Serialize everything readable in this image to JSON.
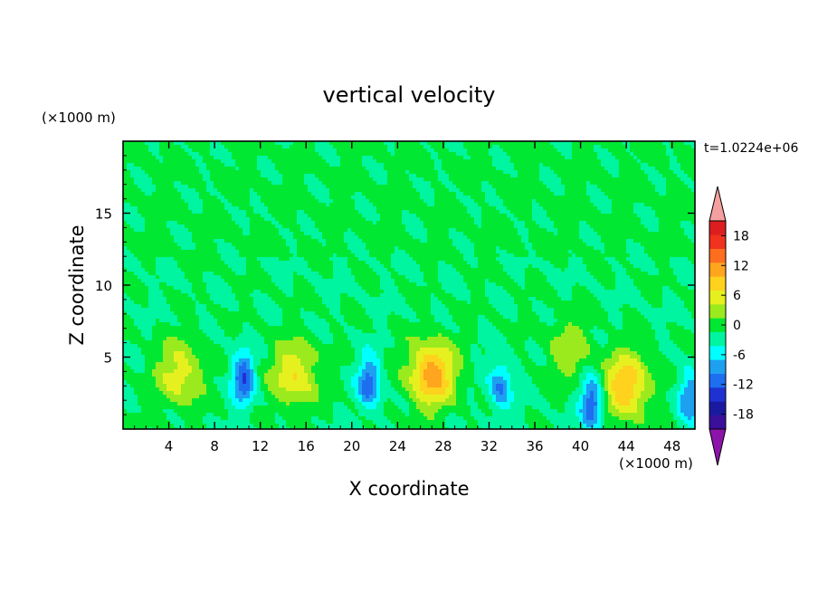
{
  "chart_data": {
    "type": "heatmap",
    "title": "vertical velocity",
    "xlabel": "X coordinate",
    "ylabel": "Z coordinate",
    "x_unit": "(×1000 m)",
    "y_unit": "(×1000 m)",
    "time_label": "t=1.0224e+06",
    "xlim": [
      0,
      50
    ],
    "ylim": [
      0,
      20
    ],
    "x_ticks": [
      4,
      8,
      12,
      16,
      20,
      24,
      28,
      32,
      36,
      40,
      44,
      48
    ],
    "y_ticks": [
      5,
      10,
      15
    ],
    "colorbar": {
      "levels": [
        -21,
        -18,
        -15,
        -12,
        -9,
        -6,
        -3,
        0,
        3,
        6,
        9,
        12,
        15,
        18,
        21
      ],
      "tick_labels": [
        "18",
        "12",
        "6",
        "0",
        "-6",
        "-12",
        "-18"
      ],
      "tick_values": [
        18,
        12,
        6,
        0,
        -6,
        -12,
        -18
      ],
      "colors": [
        "#3a0f9a",
        "#1a1aa0",
        "#1e32d2",
        "#1e6ef0",
        "#1ea0f0",
        "#00ffff",
        "#00f5a0",
        "#00e832",
        "#9bea1e",
        "#e6f01e",
        "#ffd21e",
        "#ffa51e",
        "#ff6e1e",
        "#f0321e",
        "#dc1e1e"
      ],
      "over_color": "#f5a0a0",
      "under_color": "#8c14aa"
    },
    "features": [
      {
        "sign": "up",
        "x": 5,
        "z": 3.8,
        "peak": 8
      },
      {
        "sign": "down",
        "x": 10.5,
        "z": 3.5,
        "peak": -12
      },
      {
        "sign": "up",
        "x": 15,
        "z": 3.8,
        "peak": 9
      },
      {
        "sign": "down",
        "x": 21.5,
        "z": 3.2,
        "peak": -11
      },
      {
        "sign": "up",
        "x": 27,
        "z": 3.8,
        "peak": 14
      },
      {
        "sign": "down",
        "x": 33,
        "z": 3.0,
        "peak": -9
      },
      {
        "sign": "up",
        "x": 39,
        "z": 5.5,
        "peak": 5
      },
      {
        "sign": "down",
        "x": 41,
        "z": 1.8,
        "peak": -13
      },
      {
        "sign": "up",
        "x": 44,
        "z": 3.0,
        "peak": 12
      },
      {
        "sign": "down",
        "x": 49.5,
        "z": 2.2,
        "peak": -9
      }
    ]
  }
}
